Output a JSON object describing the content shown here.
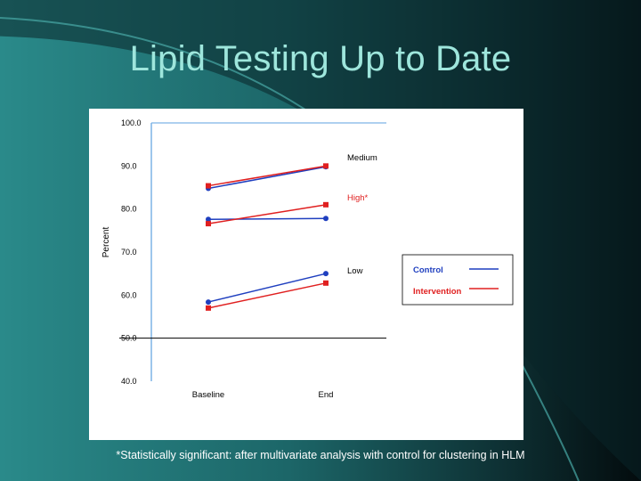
{
  "slide": {
    "title": "Lipid Testing Up to Date",
    "footnote": "*Statistically significant: after multivariate analysis with control for clustering in HLM"
  },
  "colors": {
    "background": "#0c2f33",
    "title": "#9ee6dc",
    "control": "#1f3fbf",
    "intervention": "#e02020",
    "axis": "#7db3e6",
    "high_label": "#e02020"
  },
  "chart_data": {
    "type": "line",
    "title": "",
    "xlabel": "",
    "ylabel": "Percent",
    "ylim": [
      40,
      100
    ],
    "yticks": [
      "100.0",
      "90.0",
      "80.0",
      "70.0",
      "60.0",
      "50.0",
      "40.0"
    ],
    "categories": [
      "Baseline",
      "End"
    ],
    "groups": [
      {
        "label": "Medium",
        "series": [
          {
            "name": "Control",
            "values": [
              84.8,
              89.8
            ]
          },
          {
            "name": "Intervention",
            "values": [
              85.4,
              90.0
            ]
          }
        ]
      },
      {
        "label": "High*",
        "series": [
          {
            "name": "Control",
            "values": [
              77.6,
              77.8
            ]
          },
          {
            "name": "Intervention",
            "values": [
              76.6,
              81.0
            ]
          }
        ]
      },
      {
        "label": "Low",
        "series": [
          {
            "name": "Control",
            "values": [
              58.4,
              65.0
            ]
          },
          {
            "name": "Intervention",
            "values": [
              57.0,
              62.8
            ]
          }
        ]
      }
    ],
    "legend": {
      "position": "right",
      "entries": [
        {
          "name": "Control"
        },
        {
          "name": "Intervention"
        }
      ]
    },
    "reference_line": 50
  }
}
